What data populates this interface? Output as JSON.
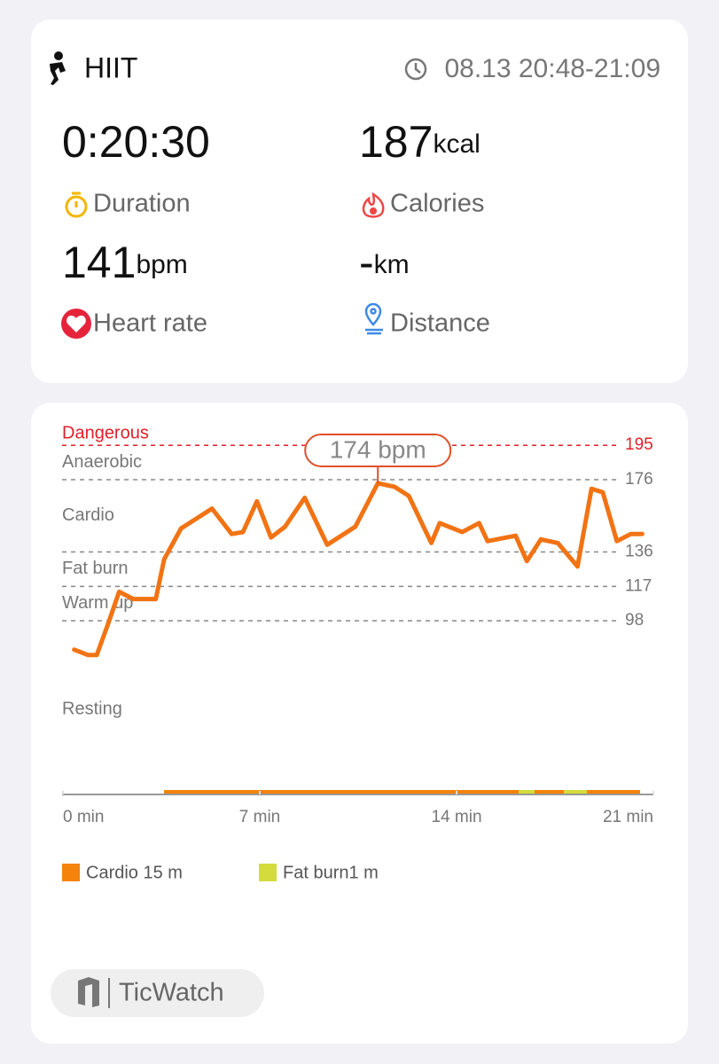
{
  "header": {
    "activity": "HIIT",
    "time": "08.13 20:48-21:09"
  },
  "stats": [
    {
      "value": "0:20:30",
      "label": "Duration"
    },
    {
      "value": "187",
      "unit": "kcal",
      "label": "Calories"
    },
    {
      "value": "141",
      "unit": "bpm",
      "label": "Heart rate"
    },
    {
      "value": "-",
      "unit": "km",
      "label": "Distance"
    }
  ],
  "chart_data": {
    "type": "line",
    "zones": [
      {
        "name": "Dangerous",
        "color": "#e0202a"
      },
      {
        "name": "Anaerobic",
        "color": "#777777"
      },
      {
        "name": "Cardio",
        "color": "#777777"
      },
      {
        "name": "Fat burn",
        "color": "#777777"
      },
      {
        "name": "Warm up",
        "color": "#777777"
      },
      {
        "name": "Resting",
        "color": "#777777"
      }
    ],
    "annotation": "174 bpm",
    "x": [
      0.4,
      0.9,
      1.2,
      1.6,
      2.0,
      2.5,
      3.3,
      3.6,
      4.2,
      4.7,
      5.3,
      6.0,
      6.4,
      6.9,
      7.4,
      7.9,
      8.6,
      9.4,
      10.4,
      11.2,
      11.8,
      12.3,
      13.1,
      13.4,
      14.2,
      14.8,
      15.1,
      16.1,
      16.5,
      17.0,
      17.6,
      18.3,
      18.8,
      19.2,
      19.7,
      20.2,
      20.6
    ],
    "values": [
      82,
      79,
      79,
      96,
      114,
      110,
      110,
      132,
      149,
      154,
      160,
      146,
      147,
      164,
      144,
      150,
      166,
      140,
      150,
      174,
      172,
      167,
      141,
      152,
      147,
      152,
      142,
      145,
      131,
      143,
      141,
      128,
      171,
      169,
      142,
      146,
      146
    ],
    "color": "#f27314",
    "xlim": [
      0,
      21
    ],
    "xticks": [
      {
        "value": 0,
        "label": "0 min"
      },
      {
        "value": 7,
        "label": "7 min"
      },
      {
        "value": 14,
        "label": "14 min"
      },
      {
        "value": 21,
        "label": "21 min"
      }
    ],
    "ylim": [
      0,
      200
    ],
    "yticks": [
      195,
      176,
      136,
      117,
      98
    ],
    "legend": [
      {
        "name": "Cardio 15 m",
        "color": "#f5820a"
      },
      {
        "name": "Fat burn1 m",
        "color": "#d3dc3c"
      }
    ]
  },
  "footer": {
    "brand": "TicWatch"
  }
}
